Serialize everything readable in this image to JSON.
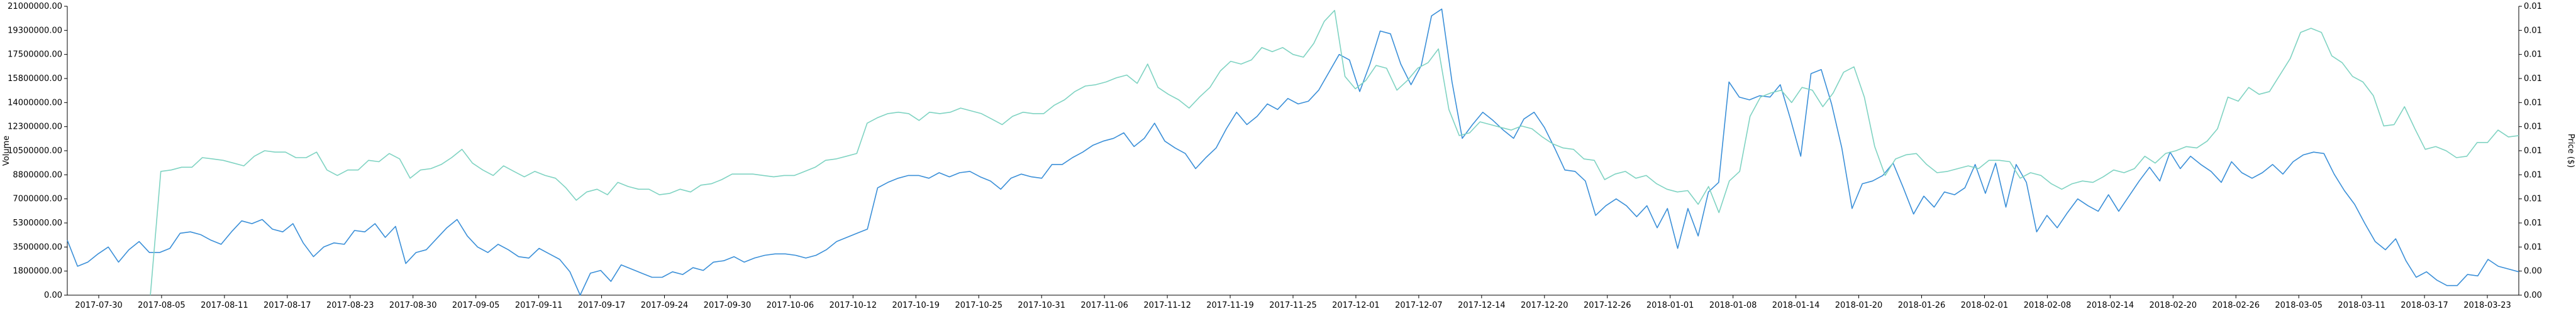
{
  "chart_data": {
    "type": "line",
    "title": "",
    "xlabel": "",
    "ylabel": "Volume",
    "ylabel_right": "Price ($)",
    "x_tick_labels": [
      "2017-07-30",
      "2017-08-05",
      "2017-08-11",
      "2017-08-17",
      "2017-08-23",
      "2017-08-30",
      "2017-09-05",
      "2017-09-11",
      "2017-09-17",
      "2017-09-24",
      "2017-09-30",
      "2017-10-06",
      "2017-10-12",
      "2017-10-19",
      "2017-10-25",
      "2017-10-31",
      "2017-11-06",
      "2017-11-12",
      "2017-11-19",
      "2017-11-25",
      "2017-12-01",
      "2017-12-07",
      "2017-12-14",
      "2017-12-20",
      "2017-12-26",
      "2018-01-01",
      "2018-01-08",
      "2018-01-14",
      "2018-01-20",
      "2018-01-26",
      "2018-02-01",
      "2018-02-08",
      "2018-02-14",
      "2018-02-20",
      "2018-02-26",
      "2018-03-05",
      "2018-03-11",
      "2018-03-17",
      "2018-03-23"
    ],
    "y_left_ticks": [
      "0.00",
      "1800000.00",
      "3500000.00",
      "5300000.00",
      "7000000.00",
      "8800000.00",
      "10500000.00",
      "12300000.00",
      "14000000.00",
      "15800000.00",
      "17500000.00",
      "19300000.00",
      "21000000.00"
    ],
    "y_right_ticks": [
      "0.00",
      "0.00",
      "0.01",
      "0.01",
      "0.01",
      "0.01",
      "0.01",
      "0.01",
      "0.01",
      "0.01",
      "0.01",
      "0.01",
      "0.01"
    ],
    "ylim": [
      0,
      21000000
    ],
    "x_range": [
      0,
      230
    ],
    "grid": false,
    "legend": "none",
    "series": [
      {
        "color": "#3a8fd8",
        "axis": "left",
        "values": [
          4000000,
          2100000,
          2400000,
          3000000,
          3500000,
          2400000,
          3300000,
          3900000,
          3100000,
          3100000,
          3400000,
          4500000,
          4600000,
          4400000,
          4000000,
          3700000,
          4600000,
          5400000,
          5200000,
          5500000,
          4800000,
          4600000,
          5200000,
          3800000,
          2800000,
          3500000,
          3800000,
          3700000,
          4700000,
          4600000,
          5200000,
          4200000,
          5000000,
          2300000,
          3100000,
          3300000,
          4100000,
          4900000,
          5500000,
          4300000,
          3500000,
          3100000,
          3700000,
          3300000,
          2800000,
          2700000,
          3400000,
          3000000,
          2600000,
          1700000,
          0,
          1600000,
          1800000,
          1000000,
          2200000,
          1900000,
          1600000,
          1300000,
          1300000,
          1700000,
          1500000,
          2000000,
          1800000,
          2400000,
          2500000,
          2800000,
          2400000,
          2700000,
          2900000,
          3000000,
          3000000,
          2900000,
          2700000,
          2900000,
          3300000,
          3900000,
          4200000,
          4500000,
          4800000,
          7800000,
          8200000,
          8500000,
          8700000,
          8700000,
          8500000,
          8900000,
          8600000,
          8900000,
          9000000,
          8600000,
          8300000,
          7700000,
          8500000,
          8800000,
          8600000,
          8500000,
          9500000,
          9500000,
          10000000,
          10400000,
          10900000,
          11200000,
          11400000,
          11800000,
          10800000,
          11400000,
          12500000,
          11200000,
          10700000,
          10300000,
          9200000,
          10000000,
          10700000,
          12100000,
          13300000,
          12400000,
          13000000,
          13900000,
          13500000,
          14300000,
          13900000,
          14100000,
          14900000,
          16200000,
          17500000,
          17100000,
          14800000,
          16800000,
          19200000,
          19000000,
          16800000,
          15300000,
          16700000,
          20300000,
          20800000,
          15500000,
          11400000,
          12400000,
          13300000,
          12700000,
          12000000,
          11400000,
          12800000,
          13300000,
          12200000,
          10700000,
          9100000,
          9000000,
          8300000,
          5800000,
          6500000,
          7000000,
          6500000,
          5700000,
          6500000,
          4900000,
          6300000,
          3400000,
          6300000,
          4300000,
          7500000,
          8200000,
          15500000,
          14400000,
          14200000,
          14500000,
          14400000,
          15300000,
          12800000,
          10100000,
          16100000,
          16400000,
          13900000,
          10700000,
          6300000,
          8100000,
          8300000,
          8700000,
          9600000,
          7800000,
          5900000,
          7200000,
          6400000,
          7500000,
          7300000,
          7800000,
          9500000,
          7400000,
          9600000,
          6400000,
          9500000,
          8200000,
          4600000,
          5800000,
          4900000,
          6000000,
          7000000,
          6500000,
          6100000,
          7300000,
          6100000,
          7200000,
          8300000,
          9300000,
          8300000,
          10400000,
          9200000,
          10100000,
          9500000,
          9000000,
          8200000,
          9700000,
          8900000,
          8500000,
          8900000,
          9500000,
          8800000,
          9700000,
          10200000,
          10400000,
          10300000,
          8800000,
          7600000,
          6600000,
          5200000,
          3900000,
          3300000,
          4100000,
          2500000,
          1300000,
          1700000,
          1100000,
          700000,
          700000,
          1500000,
          1400000,
          2600000,
          2100000,
          1900000,
          1700000
        ]
      },
      {
        "color": "#7fd3c2",
        "axis": "left",
        "values": [
          null,
          null,
          null,
          null,
          null,
          null,
          null,
          null,
          0,
          9000000,
          9100000,
          9300000,
          9300000,
          10000000,
          9900000,
          9800000,
          9600000,
          9400000,
          10100000,
          10500000,
          10400000,
          10400000,
          10000000,
          10000000,
          10400000,
          9100000,
          8700000,
          9100000,
          9100000,
          9800000,
          9700000,
          10300000,
          9900000,
          8500000,
          9100000,
          9200000,
          9500000,
          10000000,
          10600000,
          9600000,
          9100000,
          8700000,
          9400000,
          9000000,
          8600000,
          9000000,
          8700000,
          8500000,
          7800000,
          6900000,
          7500000,
          7700000,
          7300000,
          8200000,
          7900000,
          7700000,
          7700000,
          7300000,
          7400000,
          7700000,
          7500000,
          8000000,
          8100000,
          8400000,
          8800000,
          8800000,
          8800000,
          8700000,
          8600000,
          8700000,
          8700000,
          9000000,
          9300000,
          9800000,
          9900000,
          10100000,
          10300000,
          12500000,
          12900000,
          13200000,
          13300000,
          13200000,
          12700000,
          13300000,
          13200000,
          13300000,
          13600000,
          13400000,
          13200000,
          12800000,
          12400000,
          13000000,
          13300000,
          13200000,
          13200000,
          13800000,
          14200000,
          14800000,
          15200000,
          15300000,
          15500000,
          15800000,
          16000000,
          15400000,
          16800000,
          15100000,
          14600000,
          14200000,
          13600000,
          14400000,
          15100000,
          16300000,
          17000000,
          16800000,
          17100000,
          18000000,
          17700000,
          18000000,
          17500000,
          17300000,
          18300000,
          19900000,
          20700000,
          15900000,
          15000000,
          15600000,
          16700000,
          16500000,
          14900000,
          15600000,
          16500000,
          16900000,
          17900000,
          13500000,
          11600000,
          11800000,
          12600000,
          12400000,
          12200000,
          12000000,
          12300000,
          12100000,
          11500000,
          11000000,
          10700000,
          10600000,
          9900000,
          9800000,
          8400000,
          8800000,
          9000000,
          8500000,
          8700000,
          8100000,
          7700000,
          7500000,
          7600000,
          6600000,
          7900000,
          6000000,
          8300000,
          9000000,
          13000000,
          14400000,
          14700000,
          14900000,
          14000000,
          15100000,
          14900000,
          13700000,
          14700000,
          16200000,
          16600000,
          14400000,
          10800000,
          8700000,
          9900000,
          10200000,
          10300000,
          9500000,
          8900000,
          9000000,
          9200000,
          9400000,
          9200000,
          9800000,
          9800000,
          9700000,
          8500000,
          8900000,
          8700000,
          8100000,
          7700000,
          8100000,
          8300000,
          8200000,
          8600000,
          9100000,
          8900000,
          9200000,
          10100000,
          9600000,
          10300000,
          10500000,
          10800000,
          10700000,
          11200000,
          12100000,
          14400000,
          14100000,
          15100000,
          14600000,
          14800000,
          16000000,
          17200000,
          19100000,
          19400000,
          19100000,
          17400000,
          16900000,
          15900000,
          15500000,
          14500000,
          12300000,
          12400000,
          13700000,
          12100000,
          10600000,
          10800000,
          10500000,
          10000000,
          10100000,
          11100000,
          11100000,
          12000000,
          11500000,
          11600000
        ]
      }
    ]
  }
}
